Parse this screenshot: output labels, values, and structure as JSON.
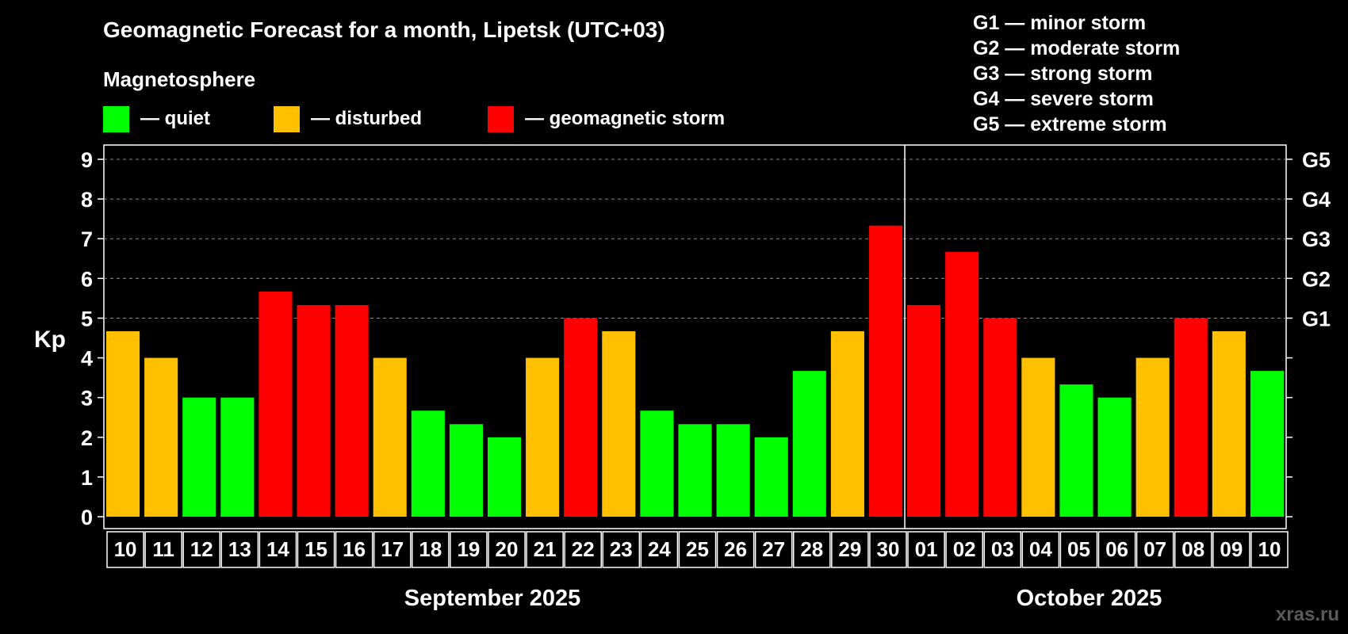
{
  "chart_data": {
    "type": "bar",
    "title": "Geomagnetic Forecast for a month, Lipetsk (UTC+03)",
    "subtitle": "Magnetosphere",
    "ylabel": "Kp",
    "ylim": [
      0,
      9
    ],
    "yticks": [
      "0",
      "1",
      "2",
      "3",
      "4",
      "5",
      "6",
      "7",
      "8",
      "9"
    ],
    "grid": "dashed horizontal at Kp 5-9",
    "levels": {
      "quiet": {
        "label": "— quiet",
        "color": "#00ff00"
      },
      "disturbed": {
        "label": "— disturbed",
        "color": "#ffc000"
      },
      "storm": {
        "label": "— geomagnetic storm",
        "color": "#ff0000"
      }
    },
    "storm_scale": [
      {
        "level": "G1",
        "kp": 5,
        "text": "G1 — minor storm"
      },
      {
        "level": "G2",
        "kp": 6,
        "text": "G2 — moderate storm"
      },
      {
        "level": "G3",
        "kp": 7,
        "text": "G3 — strong storm"
      },
      {
        "level": "G4",
        "kp": 8,
        "text": "G4 — severe storm"
      },
      {
        "level": "G5",
        "kp": 9,
        "text": "G5 — extreme storm"
      }
    ],
    "months": [
      {
        "label": "September 2025",
        "days": 21
      },
      {
        "label": "October 2025",
        "days": 10
      }
    ],
    "categories": [
      "10",
      "11",
      "12",
      "13",
      "14",
      "15",
      "16",
      "17",
      "18",
      "19",
      "20",
      "21",
      "22",
      "23",
      "24",
      "25",
      "26",
      "27",
      "28",
      "29",
      "30",
      "01",
      "02",
      "03",
      "04",
      "05",
      "06",
      "07",
      "08",
      "09",
      "10"
    ],
    "values": [
      4.67,
      4.0,
      3.0,
      3.0,
      5.67,
      5.33,
      5.33,
      4.0,
      2.67,
      2.33,
      2.0,
      4.0,
      5.0,
      4.67,
      2.67,
      2.33,
      2.33,
      2.0,
      3.67,
      4.67,
      7.33,
      5.33,
      6.67,
      5.0,
      4.0,
      3.33,
      3.0,
      4.0,
      5.0,
      4.67,
      3.67
    ],
    "levels_per_day": [
      "disturbed",
      "disturbed",
      "quiet",
      "quiet",
      "storm",
      "storm",
      "storm",
      "disturbed",
      "quiet",
      "quiet",
      "quiet",
      "disturbed",
      "storm",
      "disturbed",
      "quiet",
      "quiet",
      "quiet",
      "quiet",
      "quiet",
      "disturbed",
      "storm",
      "storm",
      "storm",
      "storm",
      "disturbed",
      "quiet",
      "quiet",
      "disturbed",
      "storm",
      "disturbed",
      "quiet"
    ]
  },
  "watermark": "xras.ru"
}
